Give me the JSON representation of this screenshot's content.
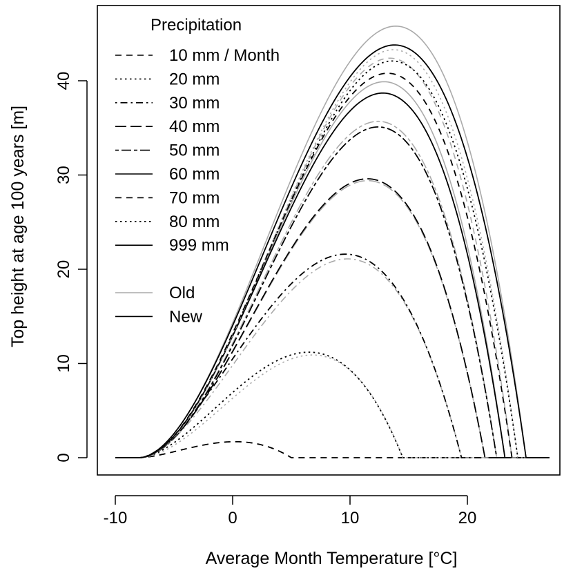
{
  "chart_data": {
    "type": "line",
    "title": "",
    "xlabel": "Average Month Temperature [°C]",
    "ylabel": "Top height at age 100 years [m]",
    "xlim": [
      -10,
      27
    ],
    "ylim": [
      0,
      46
    ],
    "xticks": [
      -10,
      0,
      10,
      20
    ],
    "xtick_labels": [
      "-10",
      "0",
      "10",
      "20"
    ],
    "yticks": [
      0,
      10,
      20,
      30,
      40
    ],
    "ytick_labels": [
      "0",
      "10",
      "20",
      "30",
      "40"
    ],
    "grid": false,
    "legend_position": "top-left",
    "legend": {
      "title": "Precipitation",
      "precip_entries": [
        {
          "label": "10 mm / Month",
          "style": "dashed"
        },
        {
          "label": "20 mm",
          "style": "dotted"
        },
        {
          "label": "30 mm",
          "style": "dotdash"
        },
        {
          "label": "40 mm",
          "style": "longdash"
        },
        {
          "label": "50 mm",
          "style": "twodash"
        },
        {
          "label": "60 mm",
          "style": "solid"
        },
        {
          "label": "70 mm",
          "style": "dashed"
        },
        {
          "label": "80 mm",
          "style": "dotted"
        },
        {
          "label": "999 mm",
          "style": "solid"
        }
      ],
      "model_entries": [
        {
          "label": "Old",
          "color": "#aaaaaa"
        },
        {
          "label": "New",
          "color": "#000000"
        }
      ]
    },
    "colors": {
      "old": "#aaaaaa",
      "new": "#000000"
    },
    "series": [
      {
        "name": "10 mm / Month",
        "style": "dashed",
        "start": -8,
        "end": 5,
        "old": {
          "peak_x": 0.2,
          "peak_y": 1.7
        },
        "new": {
          "peak_x": 0.2,
          "peak_y": 1.7
        }
      },
      {
        "name": "20 mm",
        "style": "dotted",
        "start": -8,
        "end": 14.5,
        "old": {
          "peak_x": 6.8,
          "peak_y": 10.9
        },
        "new": {
          "peak_x": 6.5,
          "peak_y": 11.2
        }
      },
      {
        "name": "30 mm",
        "style": "dotdash",
        "start": -8,
        "end": 19.5,
        "old": {
          "peak_x": 9.8,
          "peak_y": 21.1
        },
        "new": {
          "peak_x": 9.6,
          "peak_y": 21.6
        }
      },
      {
        "name": "40 mm",
        "style": "longdash",
        "start": -8,
        "end": 21.5,
        "old": {
          "peak_x": 11.5,
          "peak_y": 29.4
        },
        "new": {
          "peak_x": 11.5,
          "peak_y": 29.6
        }
      },
      {
        "name": "50 mm",
        "style": "twodash",
        "start": -8,
        "end": 22.5,
        "old": {
          "peak_x": 12.4,
          "peak_y": 35.7
        },
        "new": {
          "peak_x": 12.4,
          "peak_y": 35.1
        }
      },
      {
        "name": "60 mm",
        "style": "solid",
        "start": -8,
        "end": 23.2,
        "old": {
          "peak_x": 12.9,
          "peak_y": 39.9
        },
        "new": {
          "peak_x": 12.8,
          "peak_y": 38.7
        }
      },
      {
        "name": "70 mm",
        "style": "dashed",
        "start": -8,
        "end": 23.8,
        "old": {
          "peak_x": 13.4,
          "peak_y": 42.4
        },
        "new": {
          "peak_x": 13.2,
          "peak_y": 40.8
        }
      },
      {
        "name": "80 mm",
        "style": "dotted",
        "start": -8,
        "end": 24.3,
        "old": {
          "peak_x": 13.7,
          "peak_y": 43.3
        },
        "new": {
          "peak_x": 13.6,
          "peak_y": 42.1
        }
      },
      {
        "name": "999 mm",
        "style": "solid",
        "start": -8,
        "end": 25.0,
        "old": {
          "peak_x": 13.9,
          "peak_y": 45.8
        },
        "new": {
          "peak_x": 13.8,
          "peak_y": 43.8
        }
      }
    ]
  }
}
